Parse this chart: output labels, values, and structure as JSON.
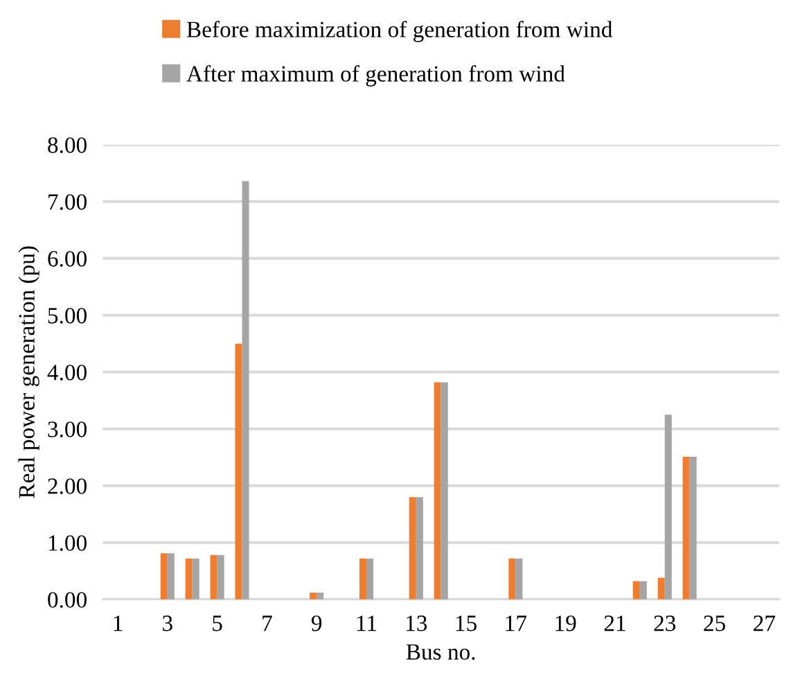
{
  "chart_data": {
    "type": "bar",
    "xlabel": "Bus no.",
    "ylabel": "Real power generation (pu)",
    "categories": [
      "1",
      null,
      "3",
      null,
      "5",
      null,
      "7",
      null,
      "9",
      null,
      "11",
      null,
      "13",
      null,
      "15",
      null,
      "17",
      null,
      "19",
      null,
      "21",
      null,
      "23",
      null,
      "25",
      null,
      "27"
    ],
    "series": [
      {
        "name": "Before maximization of generation from wind",
        "color": "#ed7d31",
        "values": [
          0,
          0,
          0.81,
          0.72,
          0.78,
          4.5,
          0,
          0,
          0.12,
          0,
          0.72,
          0,
          1.8,
          3.82,
          0,
          0,
          0.72,
          0,
          0,
          0,
          0,
          0.32,
          0.38,
          2.51,
          0,
          0,
          0
        ]
      },
      {
        "name": "After maximum of generation from wind",
        "color": "#a5a5a5",
        "values": [
          0,
          0,
          0.81,
          0.72,
          0.78,
          7.36,
          0,
          0,
          0.12,
          0,
          0.72,
          0,
          1.8,
          3.82,
          0,
          0,
          0.72,
          0,
          0,
          0,
          0,
          0.32,
          3.25,
          2.51,
          0,
          0,
          0
        ]
      }
    ],
    "ylim": [
      0,
      8
    ],
    "yticks": [
      {
        "value": 0,
        "label": "0.00"
      },
      {
        "value": 1,
        "label": "1.00"
      },
      {
        "value": 2,
        "label": "2.00"
      },
      {
        "value": 3,
        "label": "3.00"
      },
      {
        "value": 4,
        "label": "4.00"
      },
      {
        "value": 5,
        "label": "5.00"
      },
      {
        "value": 6,
        "label": "6.00"
      },
      {
        "value": 7,
        "label": "7.00"
      },
      {
        "value": 8,
        "label": "8.00"
      }
    ],
    "grid": "y",
    "legend": "top"
  }
}
